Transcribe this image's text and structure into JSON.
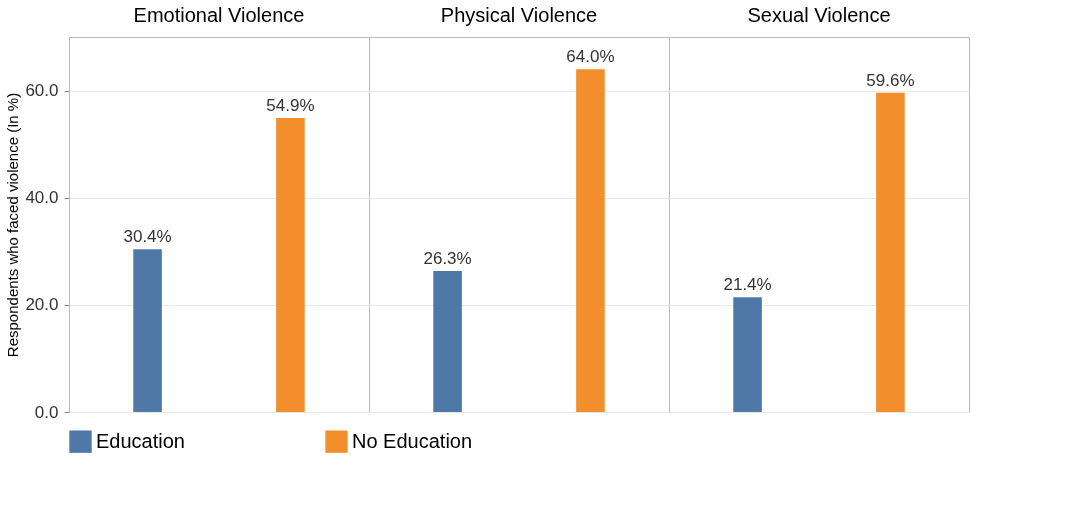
{
  "chart_data": {
    "type": "bar",
    "ylabel": "Respondents who faced violence (In %)",
    "categories": [
      "Emotional Violence",
      "Physical Violence",
      "Sexual Violence"
    ],
    "series": [
      {
        "name": "Education",
        "color": "#4e79a7",
        "values": [
          30.4,
          26.3,
          21.4
        ],
        "value_labels": [
          "30.4%",
          "26.3%",
          "21.4%"
        ]
      },
      {
        "name": "No Education",
        "color": "#f28e2b",
        "values": [
          54.9,
          64.0,
          59.6
        ],
        "value_labels": [
          "54.9%",
          "64.0%",
          "59.6%"
        ]
      }
    ],
    "ylim": [
      0,
      70
    ],
    "yticks": [
      {
        "value": 0,
        "label": "0.0"
      },
      {
        "value": 20,
        "label": "20.0"
      },
      {
        "value": 40,
        "label": "40.0"
      },
      {
        "value": 60,
        "label": "60.0"
      }
    ],
    "grid": "y",
    "legend": "bottom"
  }
}
